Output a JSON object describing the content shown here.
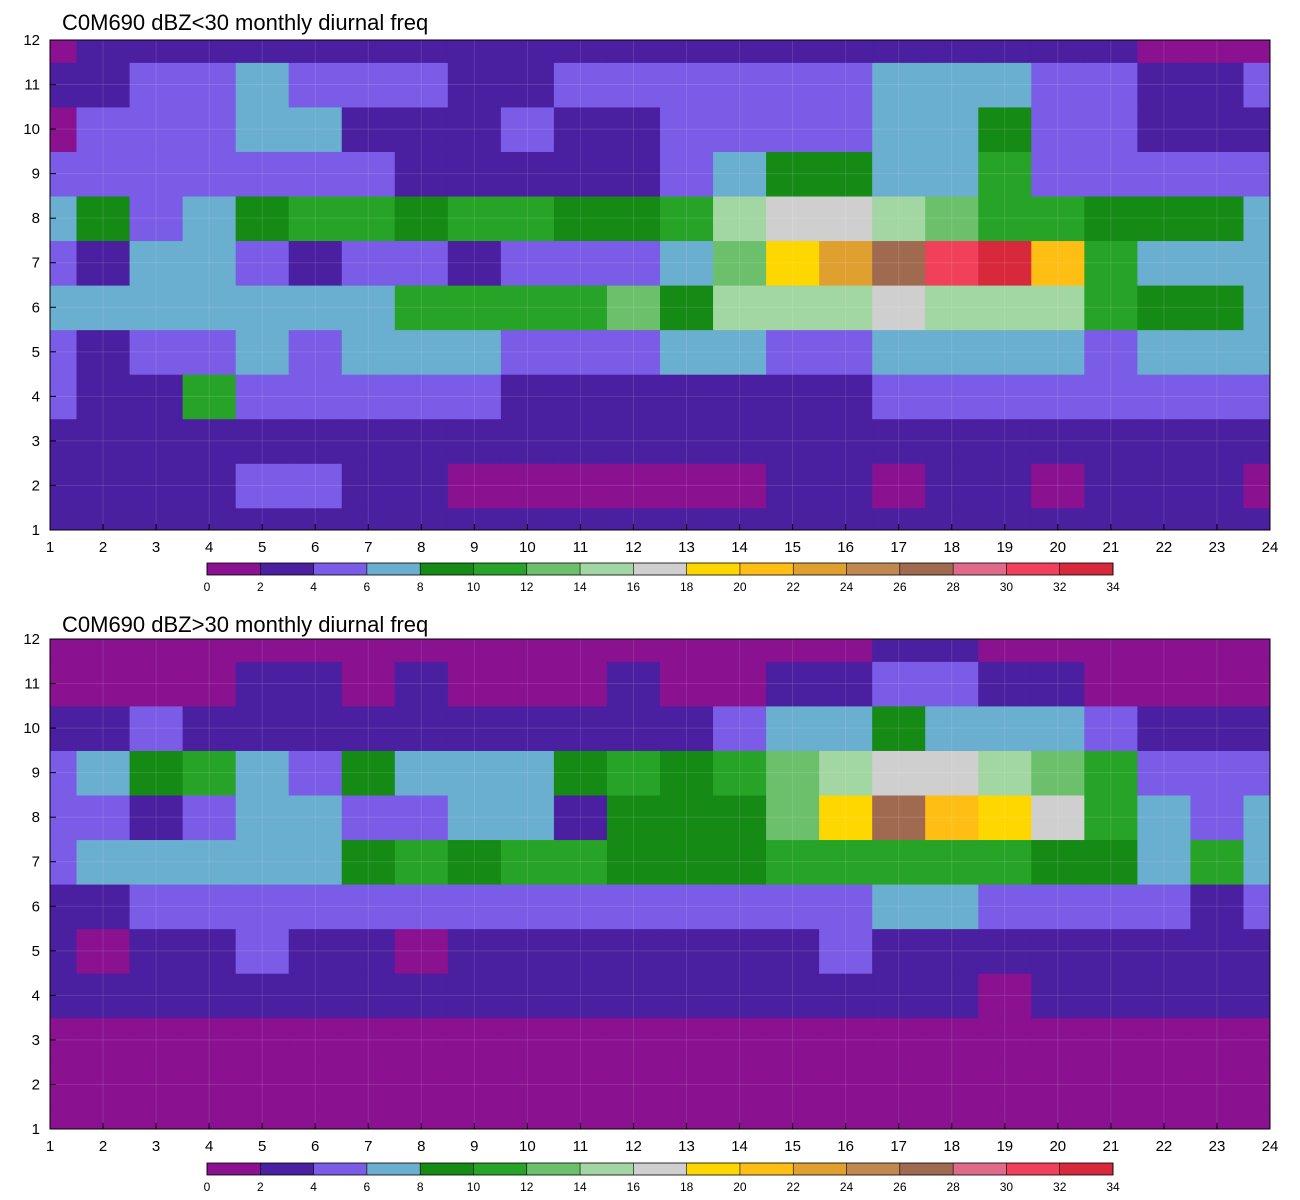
{
  "colors": {
    "levels": [
      "#8a1190",
      "#4a1fa0",
      "#7a5ce6",
      "#6aaed0",
      "#158a15",
      "#27a427",
      "#6cc06c",
      "#a2d6a2",
      "#cfcfcf",
      "#ffd700",
      "#ffbe14",
      "#e0a030",
      "#c08850",
      "#a06a50",
      "#e06a8a",
      "#f0405a",
      "#d8283c"
    ],
    "contour_line": "#f0a830"
  },
  "chart_data": [
    {
      "type": "heatmap",
      "title": "C0M690 dBZ<30 monthly diurnal freq",
      "x": [
        1,
        2,
        3,
        4,
        5,
        6,
        7,
        8,
        9,
        10,
        11,
        12,
        13,
        14,
        15,
        16,
        17,
        18,
        19,
        20,
        21,
        22,
        23,
        24
      ],
      "y": [
        1,
        2,
        3,
        4,
        5,
        6,
        7,
        8,
        9,
        10,
        11,
        12
      ],
      "xlim": [
        1,
        24
      ],
      "ylim": [
        1,
        12
      ],
      "x_ticks": [
        "1",
        "2",
        "3",
        "4",
        "5",
        "6",
        "7",
        "8",
        "9",
        "10",
        "11",
        "12",
        "13",
        "14",
        "15",
        "16",
        "17",
        "18",
        "19",
        "20",
        "21",
        "22",
        "23",
        "24"
      ],
      "y_ticks": [
        "1",
        "2",
        "3",
        "4",
        "5",
        "6",
        "7",
        "8",
        "9",
        "10",
        "11",
        "12"
      ],
      "colorbar_ticks": [
        "0",
        "2",
        "4",
        "6",
        "8",
        "10",
        "12",
        "14",
        "16",
        "18",
        "20",
        "22",
        "24",
        "26",
        "28",
        "30",
        "32",
        "34"
      ],
      "z": [
        [
          3,
          3,
          3,
          3,
          3,
          3,
          3,
          3,
          3,
          3,
          3,
          3,
          3,
          3,
          3,
          3,
          3,
          3,
          3,
          3,
          3,
          3,
          3,
          3
        ],
        [
          3,
          3,
          3,
          3,
          5,
          4,
          3,
          2,
          1,
          1,
          1,
          1,
          1,
          1,
          2,
          2,
          1,
          3,
          3,
          1,
          3,
          3,
          2,
          1
        ],
        [
          3,
          3,
          3,
          2,
          3,
          3,
          3,
          3,
          3,
          3,
          3,
          3,
          2,
          3,
          3,
          3,
          3,
          3,
          3,
          3,
          3,
          2,
          3,
          3
        ],
        [
          4,
          3,
          3,
          10,
          5,
          5,
          4,
          4,
          5,
          3,
          3,
          3,
          2,
          3,
          3,
          3,
          4,
          4,
          4,
          4,
          4,
          4,
          4,
          4
        ],
        [
          4,
          3,
          5,
          5,
          6,
          5,
          6,
          6,
          6,
          4,
          5,
          5,
          6,
          7,
          5,
          5,
          6,
          6,
          6,
          6,
          5,
          6,
          6,
          6
        ],
        [
          6,
          6,
          6,
          6,
          6,
          7,
          7,
          10,
          11,
          10,
          10,
          12,
          8,
          14,
          15,
          15,
          16,
          15,
          15,
          14,
          11,
          9,
          9,
          7
        ],
        [
          5,
          3,
          6,
          6,
          5,
          3,
          4,
          4,
          3,
          4,
          5,
          5,
          6,
          12,
          18,
          23,
          26,
          31,
          33,
          20,
          11,
          7,
          7,
          7
        ],
        [
          7,
          8,
          5,
          6,
          8,
          10,
          10,
          8,
          11,
          10,
          9,
          9,
          11,
          15,
          16,
          16,
          15,
          12,
          11,
          11,
          9,
          9,
          9,
          7
        ],
        [
          5,
          5,
          4,
          5,
          5,
          5,
          5,
          2,
          2,
          2,
          2,
          3,
          4,
          6,
          8,
          8,
          7,
          7,
          10,
          5,
          4,
          4,
          4,
          4
        ],
        [
          1,
          4,
          4,
          5,
          6,
          6,
          3,
          3,
          3,
          4,
          3,
          3,
          5,
          5,
          5,
          5,
          6,
          6,
          9,
          5,
          4,
          2,
          3,
          2
        ],
        [
          2,
          3,
          4,
          5,
          6,
          5,
          5,
          4,
          2,
          3,
          4,
          4,
          4,
          4,
          5,
          4,
          7,
          7,
          7,
          5,
          4,
          3,
          3,
          4
        ],
        [
          1,
          3,
          3,
          3,
          3,
          3,
          2,
          3,
          3,
          3,
          3,
          3,
          3,
          3,
          3,
          3,
          3,
          3,
          3,
          3,
          3,
          1,
          1,
          1
        ]
      ]
    },
    {
      "type": "heatmap",
      "title": "C0M690 dBZ>30 monthly diurnal freq",
      "x": [
        1,
        2,
        3,
        4,
        5,
        6,
        7,
        8,
        9,
        10,
        11,
        12,
        13,
        14,
        15,
        16,
        17,
        18,
        19,
        20,
        21,
        22,
        23,
        24
      ],
      "y": [
        1,
        2,
        3,
        4,
        5,
        6,
        7,
        8,
        9,
        10,
        11,
        12
      ],
      "xlim": [
        1,
        24
      ],
      "ylim": [
        1,
        12
      ],
      "x_ticks": [
        "1",
        "2",
        "3",
        "4",
        "5",
        "6",
        "7",
        "8",
        "9",
        "10",
        "11",
        "12",
        "13",
        "14",
        "15",
        "16",
        "17",
        "18",
        "19",
        "20",
        "21",
        "22",
        "23",
        "24"
      ],
      "y_ticks": [
        "1",
        "2",
        "3",
        "4",
        "5",
        "6",
        "7",
        "8",
        "9",
        "10",
        "11",
        "12"
      ],
      "colorbar_ticks": [
        "0",
        "2",
        "4",
        "6",
        "8",
        "10",
        "12",
        "14",
        "16",
        "18",
        "20",
        "22",
        "24",
        "26",
        "28",
        "30",
        "32",
        "34"
      ],
      "z": [
        [
          1,
          1,
          1,
          1,
          1,
          1,
          1,
          1,
          1,
          1,
          1,
          1,
          1,
          1,
          1,
          1,
          1,
          1,
          1,
          1,
          1,
          1,
          1,
          1
        ],
        [
          1,
          1,
          1,
          1,
          1,
          1,
          1,
          1,
          1,
          1,
          1,
          1,
          1,
          1,
          1,
          1,
          1,
          1,
          1,
          1,
          1,
          1,
          1,
          1
        ],
        [
          1,
          1,
          1,
          1,
          1,
          1,
          1,
          1,
          1,
          1,
          1,
          1,
          1,
          1,
          1,
          1,
          1,
          1,
          1,
          1,
          1,
          1,
          1,
          1
        ],
        [
          3,
          3,
          3,
          3,
          3,
          3,
          3,
          3,
          3,
          3,
          3,
          3,
          3,
          3,
          3,
          3,
          3,
          3,
          1,
          3,
          3,
          2,
          3,
          3
        ],
        [
          3,
          1,
          3,
          3,
          5,
          3,
          3,
          1,
          3,
          3,
          3,
          3,
          3,
          3,
          3,
          5,
          3,
          3,
          3,
          3,
          3,
          3,
          3,
          3
        ],
        [
          3,
          3,
          5,
          5,
          5,
          5,
          5,
          5,
          5,
          5,
          5,
          5,
          5,
          5,
          5,
          5,
          7,
          7,
          5,
          5,
          5,
          5,
          3,
          5
        ],
        [
          5,
          7,
          7,
          7,
          7,
          7,
          9,
          11,
          9,
          11,
          11,
          9,
          9,
          9,
          11,
          11,
          11,
          11,
          11,
          9,
          9,
          7,
          11,
          7
        ],
        [
          5,
          5,
          3,
          5,
          7,
          7,
          5,
          5,
          7,
          7,
          3,
          9,
          9,
          9,
          13,
          19,
          26,
          21,
          19,
          16,
          10,
          7,
          5,
          7
        ],
        [
          5,
          7,
          9,
          11,
          7,
          5,
          9,
          7,
          7,
          7,
          9,
          10,
          9,
          11,
          13,
          15,
          17,
          17,
          15,
          13,
          11,
          5,
          5,
          5
        ],
        [
          3,
          3,
          5,
          3,
          3,
          3,
          3,
          3,
          3,
          3,
          3,
          3,
          3,
          5,
          7,
          7,
          9,
          7,
          7,
          7,
          5,
          3,
          3,
          3
        ],
        [
          1,
          1,
          1,
          1,
          3,
          3,
          1,
          3,
          1,
          1,
          1,
          3,
          1,
          1,
          3,
          3,
          5,
          5,
          3,
          3,
          1,
          1,
          1,
          1
        ],
        [
          1,
          1,
          1,
          1,
          1,
          1,
          1,
          1,
          1,
          1,
          1,
          1,
          1,
          1,
          1,
          1,
          3,
          3,
          1,
          1,
          1,
          1,
          1,
          1
        ]
      ]
    }
  ]
}
